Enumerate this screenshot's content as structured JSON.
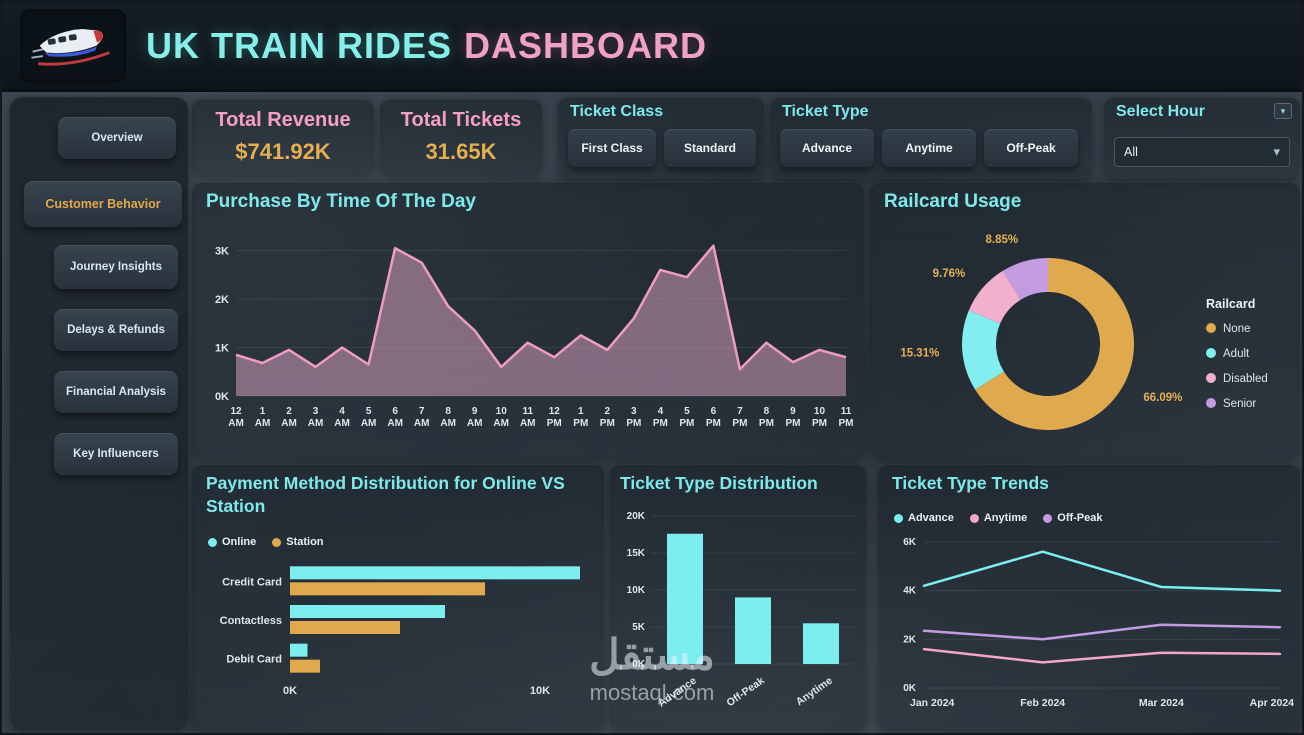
{
  "colors": {
    "cyan": "#7deef0",
    "pink": "#f2a7ca",
    "orange": "#e0a94e",
    "purple": "#c49be0"
  },
  "icons": {
    "chevron_down": "▾"
  },
  "header": {
    "title_main": "UK TRAIN RIDES",
    "title_accent": "DASHBOARD",
    "logo": "train-logo"
  },
  "sidebar": {
    "active_item": "Customer Behavior",
    "items": [
      {
        "label": "Overview"
      },
      {
        "label": "Customer Behavior"
      },
      {
        "label": "Journey Insights"
      },
      {
        "label": "Delays & Refunds"
      },
      {
        "label": "Financial Analysis"
      },
      {
        "label": "Key Influencers"
      }
    ]
  },
  "kpis": [
    {
      "label": "Total Revenue",
      "value": "$741.92K"
    },
    {
      "label": "Total Tickets",
      "value": "31.65K"
    }
  ],
  "filters": {
    "ticket_class": {
      "label": "Ticket Class",
      "options": [
        "First Class",
        "Standard"
      ]
    },
    "ticket_type": {
      "label": "Ticket Type",
      "options": [
        "Advance",
        "Anytime",
        "Off-Peak"
      ]
    },
    "select_hour": {
      "label": "Select Hour",
      "value": "All"
    }
  },
  "watermark": {
    "text_ar": "مستقل",
    "text_en": "mostaql.com"
  },
  "chart_data": [
    {
      "id": "purchase_by_time",
      "type": "area",
      "title": "Purchase By Time Of The Day",
      "x": [
        "12 AM",
        "1 AM",
        "2 AM",
        "3 AM",
        "4 AM",
        "5 AM",
        "6 AM",
        "7 AM",
        "8 AM",
        "9 AM",
        "10 AM",
        "11 AM",
        "12 PM",
        "1 PM",
        "2 PM",
        "3 PM",
        "4 PM",
        "5 PM",
        "6 PM",
        "7 PM",
        "8 PM",
        "9 PM",
        "10 PM",
        "11 PM"
      ],
      "values_k": [
        0.85,
        0.68,
        0.95,
        0.6,
        1.0,
        0.65,
        3.05,
        2.75,
        1.85,
        1.35,
        0.6,
        1.1,
        0.8,
        1.25,
        0.95,
        1.6,
        2.6,
        2.45,
        3.1,
        0.55,
        1.1,
        0.7,
        0.95,
        0.8
      ],
      "y_ticks": [
        "0K",
        "1K",
        "2K",
        "3K"
      ],
      "y_max_k": 3.3,
      "line_color": "#ef9cc4",
      "fill_color": "rgba(219,162,194,0.52)",
      "grid": true,
      "legend": "none"
    },
    {
      "id": "railcard_usage",
      "type": "donut",
      "title": "Railcard Usage",
      "legend_title": "Railcard",
      "legend_position": "right",
      "label_color": "#e7b054",
      "segments": [
        {
          "name": "None",
          "pct": 66.09,
          "label": "66.09%",
          "color": "#e0a94e"
        },
        {
          "name": "Adult",
          "pct": 15.31,
          "label": "15.31%",
          "color": "#83eef0"
        },
        {
          "name": "Disabled",
          "pct": 9.76,
          "label": "9.76%",
          "color": "#f2b0cd"
        },
        {
          "name": "Senior",
          "pct": 8.85,
          "label": "8.85%",
          "color": "#c49be0"
        }
      ]
    },
    {
      "id": "payment_method",
      "type": "hbar",
      "title": "Payment Method Distribution for Online VS Station",
      "categories": [
        "Credit Card",
        "Contactless",
        "Debit Card"
      ],
      "series": [
        {
          "name": "Online",
          "color": "#7deef0",
          "values_k": [
            11.6,
            6.2,
            0.7
          ]
        },
        {
          "name": "Station",
          "color": "#e0a94e",
          "values_k": [
            7.8,
            4.4,
            1.2
          ]
        }
      ],
      "x_ticks": [
        {
          "label": "0K",
          "value_k": 0
        },
        {
          "label": "10K",
          "value_k": 10
        }
      ],
      "x_max_k": 12,
      "legend_position": "top"
    },
    {
      "id": "ticket_type_distribution",
      "type": "bar",
      "title": "Ticket Type Distribution",
      "categories": [
        "Advance",
        "Off-Peak",
        "Anytime"
      ],
      "values_k": [
        17.6,
        9.0,
        5.5
      ],
      "y_ticks": [
        {
          "label": "0K",
          "v": 0
        },
        {
          "label": "5K",
          "v": 5
        },
        {
          "label": "10K",
          "v": 10
        },
        {
          "label": "15K",
          "v": 15
        },
        {
          "label": "20K",
          "v": 20
        }
      ],
      "y_max_k": 20,
      "bar_color": "#7deef0",
      "grid": true
    },
    {
      "id": "ticket_type_trends",
      "type": "line",
      "title": "Ticket Type Trends",
      "x": [
        "Jan 2024",
        "Feb 2024",
        "Mar 2024",
        "Apr 2024"
      ],
      "series": [
        {
          "name": "Advance",
          "color": "#7deef0",
          "values_k": [
            4.2,
            5.6,
            4.15,
            4.0
          ]
        },
        {
          "name": "Anytime",
          "color": "#f2a7ca",
          "values_k": [
            1.6,
            1.05,
            1.45,
            1.4
          ]
        },
        {
          "name": "Off-Peak",
          "color": "#c49be0",
          "values_k": [
            2.35,
            2.0,
            2.6,
            2.5
          ]
        }
      ],
      "y_ticks": [
        {
          "label": "0K",
          "v": 0
        },
        {
          "label": "2K",
          "v": 2
        },
        {
          "label": "4K",
          "v": 4
        },
        {
          "label": "6K",
          "v": 6
        }
      ],
      "y_max_k": 6,
      "grid": true,
      "legend_position": "top"
    }
  ]
}
